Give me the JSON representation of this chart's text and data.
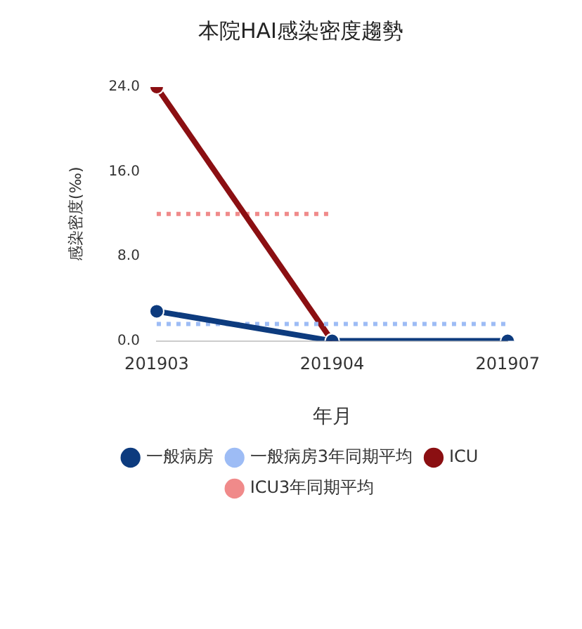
{
  "chart_data": {
    "type": "line",
    "title": "本院HAI感染密度趨勢",
    "xlabel": "年月",
    "ylabel": "感染密度(‰)",
    "categories": [
      "201903",
      "201904",
      "201907"
    ],
    "series": [
      {
        "name": "一般病房",
        "color": "#0d3b7e",
        "values": [
          2.8,
          0,
          0
        ],
        "marker": "circle",
        "line_style": "solid"
      },
      {
        "name": "一般病房3年同期平均",
        "color": "#9dbcf5",
        "values": [
          1.6,
          1.6,
          1.6
        ],
        "marker": "none",
        "line_style": "dotted"
      },
      {
        "name": "ICU",
        "color": "#8b0f12",
        "values": [
          24,
          0,
          null
        ],
        "marker": "circle",
        "line_style": "solid"
      },
      {
        "name": "ICU3年同期平均",
        "color": "#f08a8a",
        "values": [
          12,
          12,
          null
        ],
        "marker": "none",
        "line_style": "dotted"
      }
    ],
    "ylim": [
      0,
      24
    ],
    "yticks": [
      {
        "value": 0,
        "label": "0.0"
      },
      {
        "value": 8,
        "label": "8.0"
      },
      {
        "value": 16,
        "label": "16.0"
      },
      {
        "value": 24,
        "label": "24.0"
      }
    ],
    "grid": false,
    "legend": "bottom"
  }
}
